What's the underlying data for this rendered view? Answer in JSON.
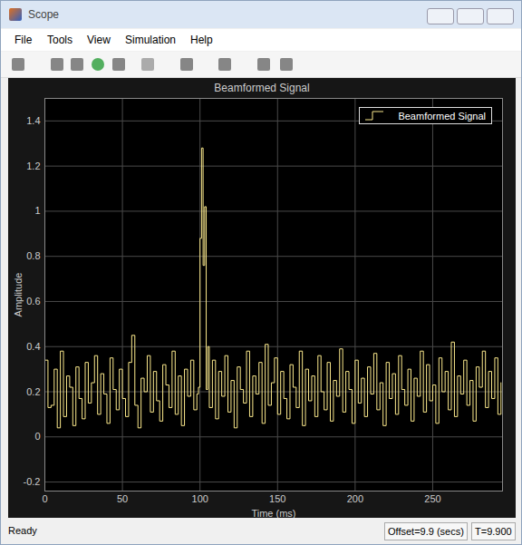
{
  "window": {
    "title": "Scope",
    "menu": [
      "File",
      "Tools",
      "View",
      "Simulation",
      "Help"
    ],
    "status": "Ready",
    "status_fields": [
      "Offset=9.9 (secs)",
      "T=9.900"
    ]
  },
  "chart_data": {
    "type": "line",
    "title": "Beamformed Signal",
    "x_label": "Time (ms)",
    "y_label": "Amplitude",
    "xlim": [
      0,
      295
    ],
    "xticks": [
      0,
      50,
      100,
      150,
      200,
      250
    ],
    "ylim": [
      -0.24,
      1.5
    ],
    "yticks": [
      -0.2,
      0,
      0.2,
      0.4,
      0.6,
      0.8,
      1,
      1.2,
      1.4
    ],
    "grid": true,
    "legend": "top-right",
    "line_style": "steps",
    "x": [
      0,
      2,
      4,
      6,
      8,
      10,
      12,
      14,
      16,
      18,
      20,
      22,
      24,
      26,
      28,
      30,
      32,
      34,
      36,
      38,
      40,
      42,
      44,
      46,
      48,
      50,
      52,
      54,
      56,
      58,
      60,
      62,
      64,
      66,
      68,
      70,
      72,
      74,
      76,
      78,
      80,
      82,
      84,
      86,
      88,
      90,
      92,
      94,
      96,
      98,
      99,
      100,
      101,
      102,
      103,
      104,
      105,
      106,
      108,
      110,
      112,
      114,
      116,
      118,
      120,
      122,
      124,
      126,
      128,
      130,
      132,
      134,
      136,
      138,
      140,
      142,
      144,
      146,
      148,
      150,
      152,
      154,
      156,
      158,
      160,
      162,
      164,
      166,
      168,
      170,
      172,
      174,
      176,
      178,
      180,
      182,
      184,
      186,
      188,
      190,
      192,
      194,
      196,
      198,
      200,
      202,
      204,
      206,
      208,
      210,
      212,
      214,
      216,
      218,
      220,
      222,
      224,
      226,
      228,
      230,
      232,
      234,
      236,
      238,
      240,
      242,
      244,
      246,
      248,
      250,
      252,
      254,
      256,
      258,
      260,
      262,
      264,
      266,
      268,
      270,
      272,
      274,
      276,
      278,
      280,
      282,
      284,
      286,
      288,
      290,
      292,
      294
    ],
    "series": [
      {
        "name": "Beamformed Signal",
        "color": "#fbe98c",
        "values": [
          0.34,
          0.13,
          0.14,
          0.3,
          0.04,
          0.38,
          0.09,
          0.27,
          0.22,
          0.05,
          0.31,
          0.17,
          0.08,
          0.33,
          0.15,
          0.24,
          0.36,
          0.1,
          0.28,
          0.19,
          0.06,
          0.35,
          0.21,
          0.12,
          0.3,
          0.17,
          0.09,
          0.33,
          0.45,
          0.14,
          0.04,
          0.26,
          0.2,
          0.36,
          0.11,
          0.29,
          0.16,
          0.07,
          0.32,
          0.23,
          0.13,
          0.38,
          0.1,
          0.27,
          0.05,
          0.3,
          0.18,
          0.34,
          0.12,
          0.19,
          0.22,
          0.88,
          1.28,
          0.76,
          1.02,
          0.21,
          0.4,
          0.13,
          0.34,
          0.08,
          0.29,
          0.18,
          0.36,
          0.11,
          0.25,
          0.04,
          0.31,
          0.21,
          0.15,
          0.38,
          0.09,
          0.27,
          0.19,
          0.33,
          0.06,
          0.41,
          0.14,
          0.24,
          0.35,
          0.1,
          0.29,
          0.17,
          0.08,
          0.32,
          0.22,
          0.13,
          0.38,
          0.05,
          0.3,
          0.16,
          0.27,
          0.09,
          0.36,
          0.2,
          0.12,
          0.33,
          0.07,
          0.25,
          0.18,
          0.39,
          0.11,
          0.29,
          0.21,
          0.06,
          0.34,
          0.15,
          0.26,
          0.09,
          0.31,
          0.19,
          0.37,
          0.12,
          0.24,
          0.05,
          0.33,
          0.17,
          0.28,
          0.1,
          0.36,
          0.21,
          0.14,
          0.3,
          0.07,
          0.26,
          0.18,
          0.38,
          0.11,
          0.32,
          0.16,
          0.23,
          0.06,
          0.35,
          0.2,
          0.29,
          0.12,
          0.42,
          0.09,
          0.27,
          0.19,
          0.34,
          0.14,
          0.25,
          0.07,
          0.31,
          0.22,
          0.38,
          0.13,
          0.29,
          0.17,
          0.35,
          0.1,
          0.24
        ]
      }
    ]
  }
}
